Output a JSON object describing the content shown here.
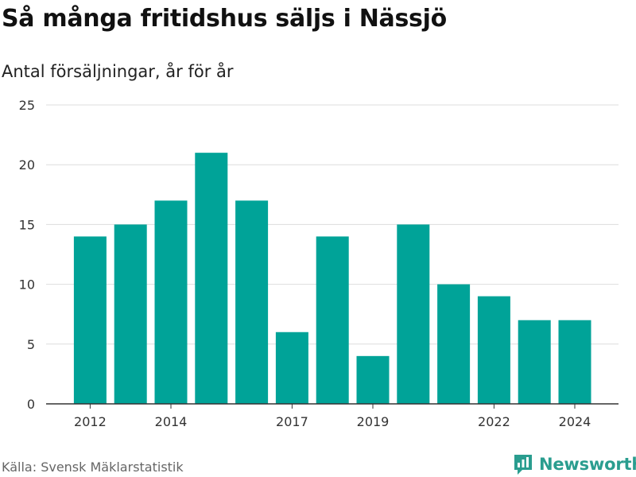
{
  "title": "Så många fritidshus säljs i Nässjö",
  "subtitle": "Antal försäljningar, år för år",
  "source": "Källa: Svensk Mäklarstatistik",
  "brand": {
    "name": "Newsworthy",
    "icon": "newsworthy-logo-icon"
  },
  "colors": {
    "bar": "#00a398",
    "grid": "#dddddd",
    "axis": "#333333",
    "brand": "#2a9d8f"
  },
  "chart_data": {
    "type": "bar",
    "title": "Så många fritidshus säljs i Nässjö",
    "subtitle": "Antal försäljningar, år för år",
    "xlabel": "",
    "ylabel": "",
    "categories": [
      "2012",
      "2013",
      "2014",
      "2015",
      "2016",
      "2017",
      "2018",
      "2019",
      "2020",
      "2021",
      "2022",
      "2023",
      "2024"
    ],
    "values": [
      14,
      15,
      17,
      21,
      17,
      6,
      14,
      4,
      15,
      10,
      9,
      7,
      7
    ],
    "x_tick_labels": [
      "2012",
      "2014",
      "2017",
      "2019",
      "2022",
      "2024"
    ],
    "y_ticks": [
      0,
      5,
      10,
      15,
      20,
      25
    ],
    "ylim": [
      0,
      25
    ],
    "grid": true,
    "legend": "none"
  }
}
